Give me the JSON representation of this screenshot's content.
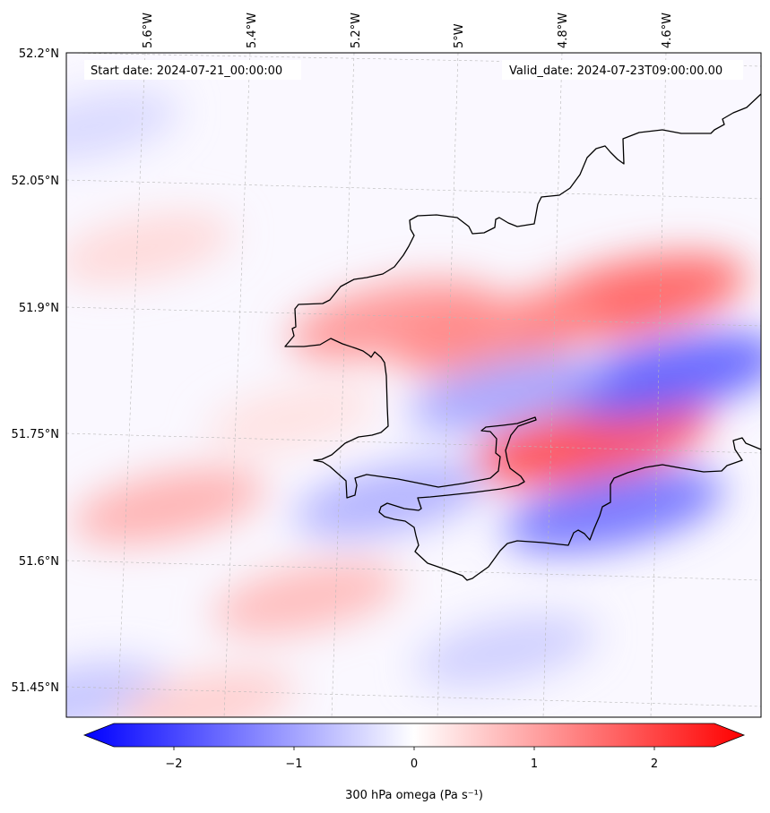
{
  "map": {
    "header": {
      "start_label": "Start date: 2024-07-21_00:00:00",
      "valid_label": "Valid_date: 2024-07-23T09:00:00.00"
    },
    "lat_labels": [
      "52.2°N",
      "52.05°N",
      "51.9°N",
      "51.75°N",
      "51.6°N",
      "51.45°N"
    ],
    "lon_labels": [
      "5.6°W",
      "5.4°W",
      "5.2°W",
      "5°W",
      "4.8°W",
      "4.6°W"
    ],
    "colorbar": {
      "label": "300 hPa omega (Pa s⁻¹)",
      "ticks": [
        "−2",
        "−1",
        "0",
        "1",
        "2"
      ],
      "min": -2.5,
      "max": 2.5,
      "low_color": "#0000ff",
      "mid_color": "#ffffff",
      "high_color": "#ff0000"
    },
    "field_features": [
      {
        "lon": -4.6,
        "lat": 51.95,
        "value": 1.6
      },
      {
        "lon": -4.62,
        "lat": 51.78,
        "value": 1.8
      },
      {
        "lon": -5.05,
        "lat": 51.91,
        "value": 1.1
      },
      {
        "lon": -4.84,
        "lat": 51.9,
        "value": 1.2
      },
      {
        "lon": -4.5,
        "lat": 51.86,
        "value": -1.6
      },
      {
        "lon": -4.8,
        "lat": 51.83,
        "value": -0.9
      },
      {
        "lon": -4.55,
        "lat": 51.7,
        "value": -1.4
      },
      {
        "lon": -4.98,
        "lat": 51.7,
        "value": -0.8
      },
      {
        "lon": -5.4,
        "lat": 51.68,
        "value": 0.8
      },
      {
        "lon": -5.1,
        "lat": 51.58,
        "value": 0.7
      },
      {
        "lon": -5.7,
        "lat": 52.12,
        "value": -0.4
      },
      {
        "lon": -5.55,
        "lat": 51.98,
        "value": 0.4
      },
      {
        "lon": -5.5,
        "lat": 51.45,
        "value": -0.6
      },
      {
        "lon": -4.7,
        "lat": 51.53,
        "value": -0.5
      },
      {
        "lon": -5.2,
        "lat": 51.79,
        "value": 0.3
      },
      {
        "lon": -5.25,
        "lat": 51.45,
        "value": 0.5
      }
    ]
  }
}
